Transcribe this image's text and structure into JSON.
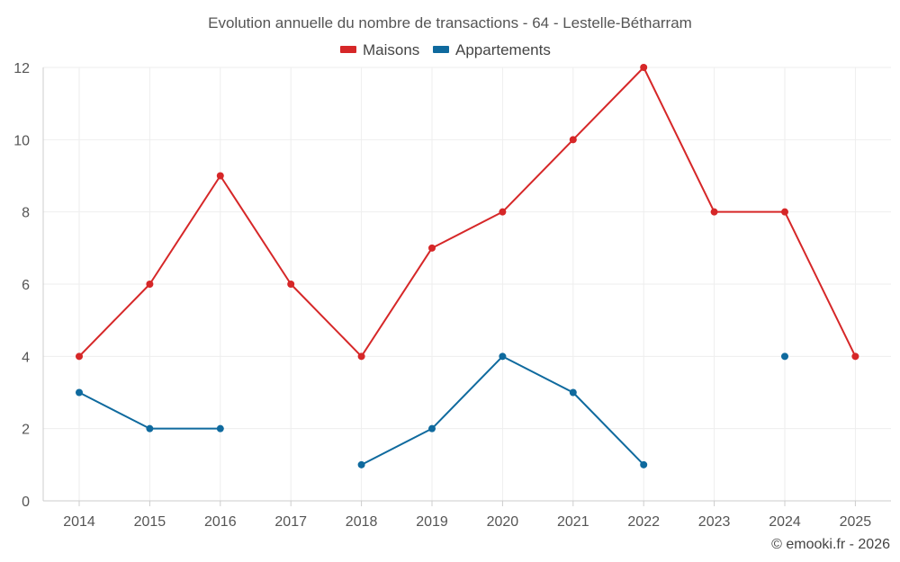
{
  "chart_data": {
    "type": "line",
    "title": "Evolution annuelle du nombre de transactions - 64 - Lestelle-Bétharram",
    "categories": [
      "2014",
      "2015",
      "2016",
      "2017",
      "2018",
      "2019",
      "2020",
      "2021",
      "2022",
      "2023",
      "2024",
      "2025"
    ],
    "series": [
      {
        "name": "Maisons",
        "color": "#d62728",
        "values": [
          4,
          6,
          9,
          6,
          4,
          7,
          8,
          10,
          12,
          8,
          8,
          4
        ]
      },
      {
        "name": "Appartements",
        "color": "#0f6a9e",
        "values": [
          3,
          2,
          2,
          null,
          1,
          2,
          4,
          3,
          1,
          null,
          4,
          null
        ]
      }
    ],
    "ylim": [
      0,
      12
    ],
    "yticks": [
      0,
      2,
      4,
      6,
      8,
      10,
      12
    ],
    "xlabel": "",
    "ylabel": "",
    "legend_position": "top-center",
    "grid": true
  },
  "credit": "© emooki.fr - 2026"
}
